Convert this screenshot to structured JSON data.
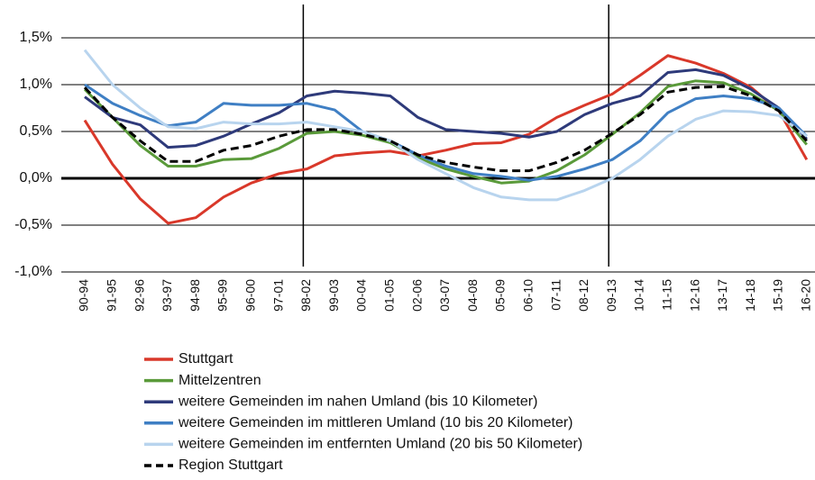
{
  "chart_data": {
    "type": "line",
    "categories": [
      "90-94",
      "91-95",
      "92-96",
      "93-97",
      "94-98",
      "95-99",
      "96-00",
      "97-01",
      "98-02",
      "99-03",
      "00-04",
      "01-05",
      "02-06",
      "03-07",
      "04-08",
      "05-09",
      "06-10",
      "07-11",
      "08-12",
      "09-13",
      "10-14",
      "11-15",
      "12-16",
      "13-17",
      "14-18",
      "15-19",
      "16-20"
    ],
    "series": [
      {
        "name": "Stuttgart",
        "color": "#d9382a",
        "values": [
          0.62,
          0.15,
          -0.22,
          -0.48,
          -0.42,
          -0.2,
          -0.05,
          0.05,
          0.1,
          0.24,
          0.27,
          0.29,
          0.24,
          0.3,
          0.37,
          0.38,
          0.47,
          0.65,
          0.78,
          0.9,
          1.1,
          1.31,
          1.23,
          1.12,
          0.97,
          0.72,
          0.2
        ]
      },
      {
        "name": "Mittelzentren",
        "color": "#5a9a3a",
        "values": [
          0.95,
          0.65,
          0.35,
          0.13,
          0.13,
          0.2,
          0.21,
          0.32,
          0.48,
          0.5,
          0.46,
          0.38,
          0.22,
          0.1,
          0.02,
          -0.05,
          -0.03,
          0.08,
          0.25,
          0.47,
          0.7,
          0.98,
          1.04,
          1.02,
          0.9,
          0.72,
          0.36
        ]
      },
      {
        "name": "weitere Gemeinden im nahen Umland (bis 10 Kilometer)",
        "color": "#2e3a7a",
        "values": [
          0.87,
          0.65,
          0.57,
          0.33,
          0.35,
          0.45,
          0.58,
          0.7,
          0.88,
          0.93,
          0.91,
          0.88,
          0.65,
          0.52,
          0.5,
          0.48,
          0.44,
          0.5,
          0.68,
          0.8,
          0.88,
          1.13,
          1.16,
          1.1,
          0.95,
          0.75,
          0.42
        ]
      },
      {
        "name": "weitere Gemeinden im mittleren Umland (10 bis 20 Kilometer)",
        "color": "#3f7fc4",
        "values": [
          1.0,
          0.8,
          0.67,
          0.56,
          0.6,
          0.8,
          0.78,
          0.78,
          0.8,
          0.73,
          0.5,
          0.4,
          0.25,
          0.13,
          0.05,
          0.02,
          -0.02,
          0.02,
          0.1,
          0.2,
          0.4,
          0.7,
          0.85,
          0.88,
          0.85,
          0.75,
          0.45
        ]
      },
      {
        "name": "weitere Gemeinden im entfernten Umland (20 bis 50 Kilometer)",
        "color": "#b8d4ee",
        "values": [
          1.37,
          1.0,
          0.75,
          0.55,
          0.53,
          0.6,
          0.58,
          0.58,
          0.6,
          0.55,
          0.5,
          0.4,
          0.2,
          0.05,
          -0.1,
          -0.2,
          -0.23,
          -0.23,
          -0.13,
          0.0,
          0.2,
          0.45,
          0.63,
          0.72,
          0.71,
          0.67,
          0.45
        ]
      },
      {
        "name": "Region Stuttgart",
        "color": "#000000",
        "dashed": true,
        "values": [
          0.97,
          0.65,
          0.4,
          0.18,
          0.18,
          0.3,
          0.35,
          0.45,
          0.52,
          0.52,
          0.47,
          0.4,
          0.25,
          0.17,
          0.12,
          0.08,
          0.08,
          0.17,
          0.3,
          0.48,
          0.68,
          0.92,
          0.97,
          0.98,
          0.88,
          0.72,
          0.4
        ]
      }
    ],
    "ylim": [
      -1.0,
      1.5
    ],
    "yticks": [
      {
        "value": -1.0,
        "label": "-1,0%"
      },
      {
        "value": -0.5,
        "label": "-0,5%"
      },
      {
        "value": 0,
        "label": "0,0%"
      },
      {
        "value": 0.5,
        "label": "0,5%"
      },
      {
        "value": 1.0,
        "label": "1,0%"
      },
      {
        "value": 1.5,
        "label": "1,5%"
      }
    ],
    "grid": true,
    "legend": "bottom"
  }
}
